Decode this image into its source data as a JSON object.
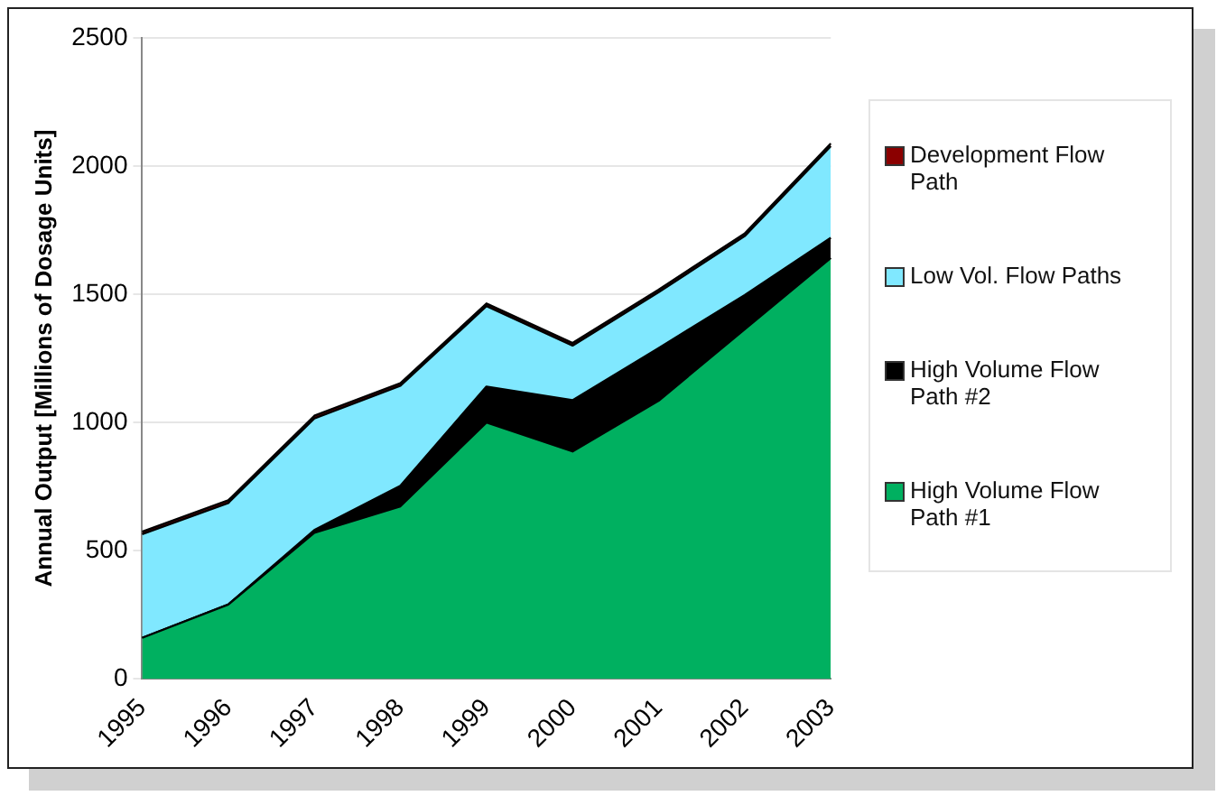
{
  "chart_data": {
    "type": "area",
    "stacked": true,
    "ylabel": "Annual Output [Millions of Dosage Units]",
    "categories": [
      "1995",
      "1996",
      "1997",
      "1998",
      "1999",
      "2000",
      "2001",
      "2002",
      "2003"
    ],
    "series": [
      {
        "name": "High Volume Flow Path #1",
        "color": "#00b060",
        "values": [
          160,
          290,
          570,
          673,
          1000,
          887,
          1085,
          1364,
          1642
        ]
      },
      {
        "name": "High Volume Flow Path #2",
        "color": "#000000",
        "values": [
          0,
          0,
          10,
          80,
          140,
          200,
          205,
          133,
          78
        ]
      },
      {
        "name": "Low Vol. Flow Paths",
        "color": "#80e8ff",
        "values": [
          404,
          396,
          436,
          390,
          314,
          213,
          218,
          230,
          358
        ]
      },
      {
        "name": "Development Flow Path",
        "color": "#8b0000",
        "values": [
          10,
          10,
          10,
          10,
          10,
          10,
          10,
          10,
          10
        ]
      }
    ],
    "ylim": [
      0,
      2500
    ],
    "yticks": [
      0,
      500,
      1000,
      1500,
      2000,
      2500
    ],
    "grid": "y",
    "legend": "right"
  }
}
